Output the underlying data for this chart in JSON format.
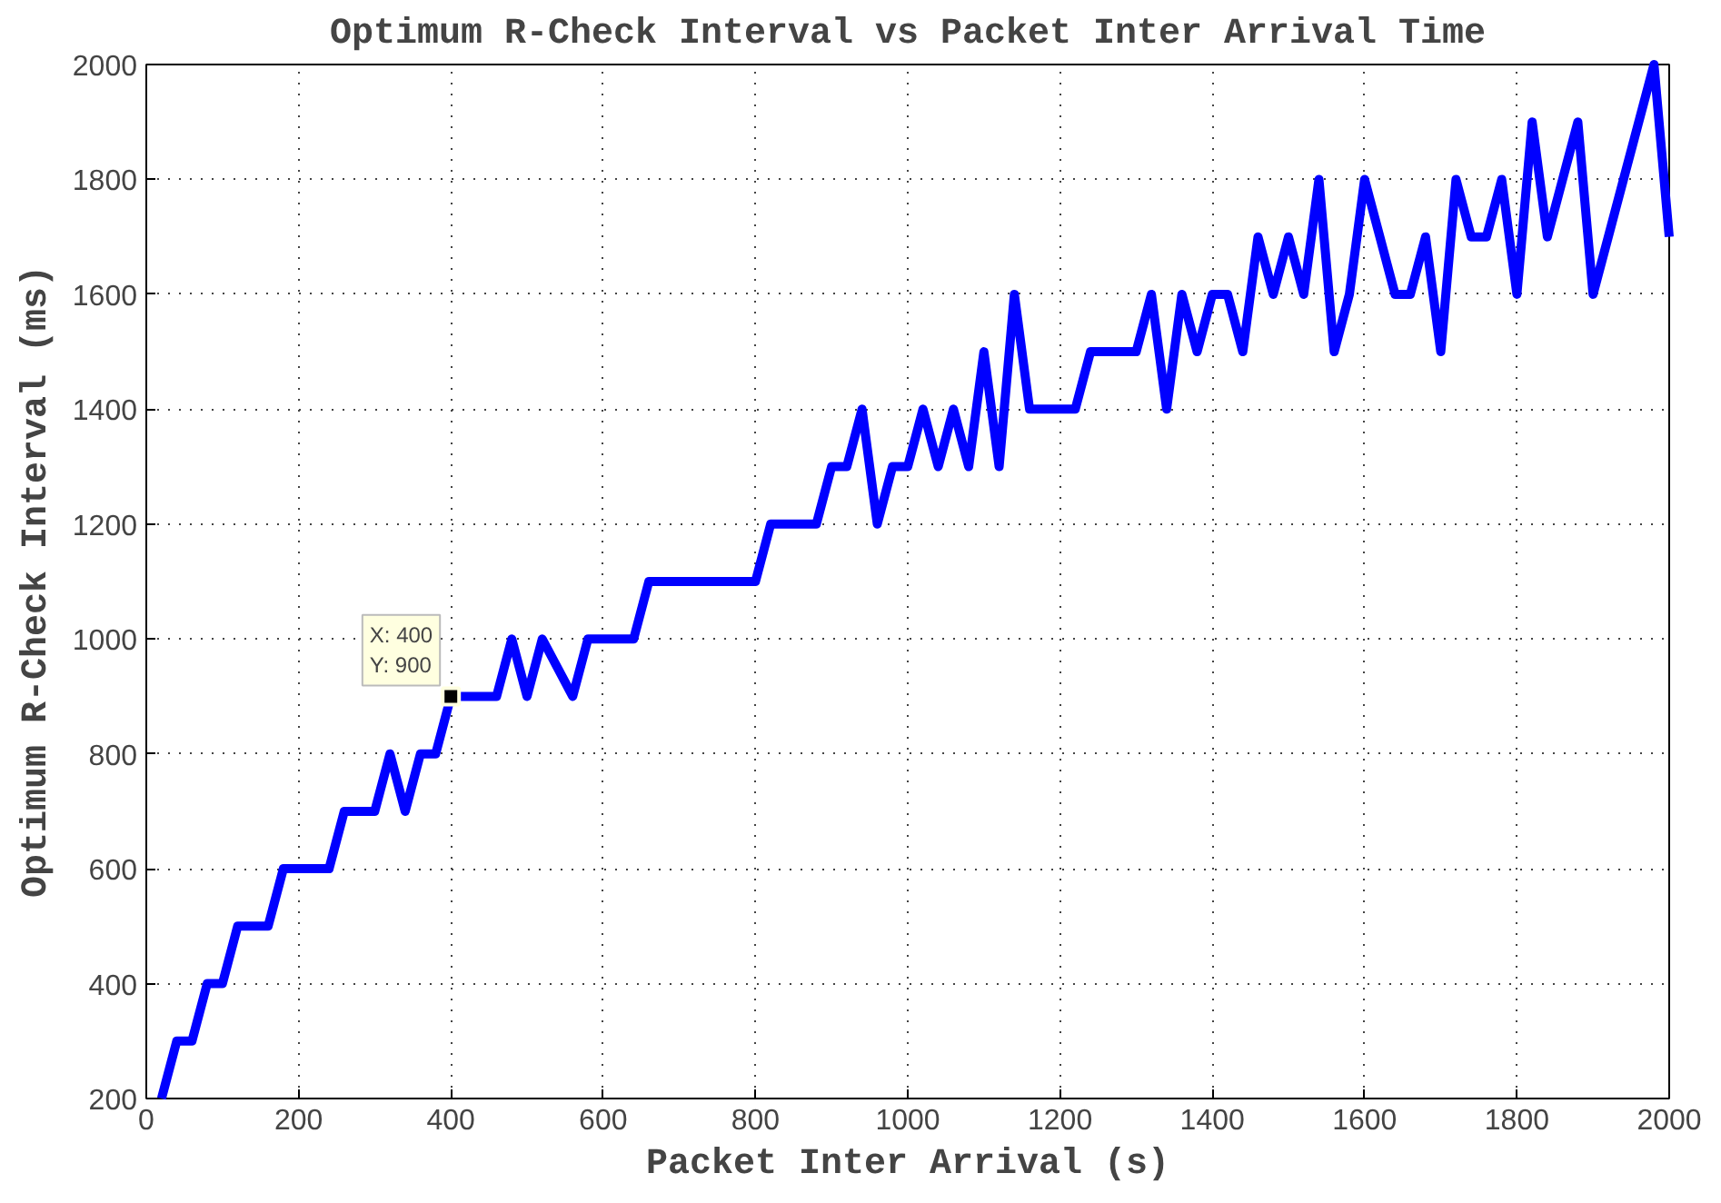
{
  "chart_data": {
    "type": "line",
    "title": "Optimum R-Check Interval vs Packet Inter Arrival Time",
    "xlabel": "Packet Inter Arrival (s)",
    "ylabel": "Optimum R-Check Interval (ms)",
    "x": [
      20,
      40,
      60,
      80,
      100,
      120,
      160,
      180,
      240,
      260,
      300,
      320,
      340,
      360,
      380,
      400,
      460,
      480,
      500,
      520,
      560,
      580,
      640,
      660,
      800,
      820,
      880,
      900,
      920,
      940,
      960,
      980,
      1000,
      1020,
      1040,
      1060,
      1080,
      1100,
      1120,
      1140,
      1160,
      1220,
      1240,
      1300,
      1320,
      1340,
      1360,
      1380,
      1400,
      1420,
      1440,
      1460,
      1480,
      1500,
      1520,
      1540,
      1560,
      1580,
      1600,
      1640,
      1660,
      1680,
      1700,
      1720,
      1740,
      1760,
      1780,
      1800,
      1820,
      1840,
      1880,
      1900,
      1980,
      2000
    ],
    "series": [
      {
        "color": "#0000ff",
        "values": [
          200,
          300,
          300,
          400,
          400,
          500,
          500,
          600,
          600,
          700,
          700,
          800,
          700,
          800,
          800,
          900,
          900,
          1000,
          900,
          1000,
          900,
          1000,
          1000,
          1100,
          1100,
          1200,
          1200,
          1300,
          1300,
          1400,
          1200,
          1300,
          1300,
          1400,
          1300,
          1400,
          1300,
          1500,
          1300,
          1600,
          1400,
          1400,
          1500,
          1500,
          1600,
          1400,
          1600,
          1500,
          1600,
          1600,
          1500,
          1700,
          1600,
          1700,
          1600,
          1800,
          1500,
          1600,
          1800,
          1600,
          1600,
          1700,
          1500,
          1800,
          1700,
          1700,
          1800,
          1600,
          1900,
          1700,
          1900,
          1600,
          2000,
          1700
        ]
      }
    ],
    "xlim": [
      0,
      2000
    ],
    "ylim": [
      200,
      2000
    ],
    "xticks": [
      0,
      200,
      400,
      600,
      800,
      1000,
      1200,
      1400,
      1600,
      1800,
      2000
    ],
    "yticks": [
      200,
      400,
      600,
      800,
      1000,
      1200,
      1400,
      1600,
      1800,
      2000
    ],
    "grid": true,
    "marker": "none",
    "line_style": "solid",
    "annotations": [
      {
        "text": "X: 400\nY: 900",
        "x": 400,
        "y": 900
      }
    ]
  }
}
